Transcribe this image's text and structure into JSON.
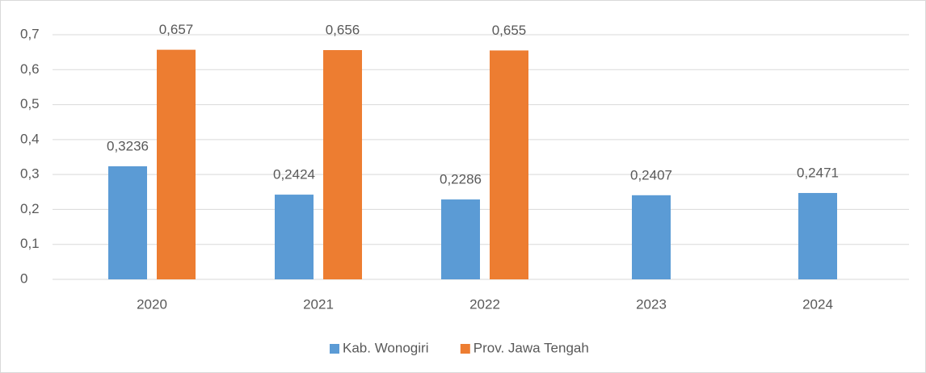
{
  "chart_data": {
    "type": "bar",
    "categories": [
      "2020",
      "2021",
      "2022",
      "2023",
      "2024"
    ],
    "series": [
      {
        "name": "Kab. Wonogiri",
        "color": "#5b9bd5",
        "values": [
          0.3236,
          0.2424,
          0.2286,
          0.2407,
          0.2471
        ],
        "value_labels": [
          "0,3236",
          "0,2424",
          "0,2286",
          "0,2407",
          "0,2471"
        ]
      },
      {
        "name": "Prov. Jawa Tengah",
        "color": "#ed7d31",
        "values": [
          0.657,
          0.656,
          0.655,
          null,
          null
        ],
        "value_labels": [
          "0,657",
          "0,656",
          "0,655",
          null,
          null
        ]
      }
    ],
    "ylim": [
      0,
      0.7
    ],
    "yticks": [
      0,
      {
        "value": 0.1,
        "label": "0,1"
      },
      {
        "value": 0.2,
        "label": "0,2"
      },
      {
        "value": 0.3,
        "label": "0,3"
      },
      {
        "value": 0.4,
        "label": "0,4"
      },
      {
        "value": 0.5,
        "label": "0,5"
      },
      {
        "value": 0.6,
        "label": "0,6"
      },
      {
        "value": 0.7,
        "label": "0,7"
      }
    ],
    "grid": true,
    "legend": "bottom"
  }
}
